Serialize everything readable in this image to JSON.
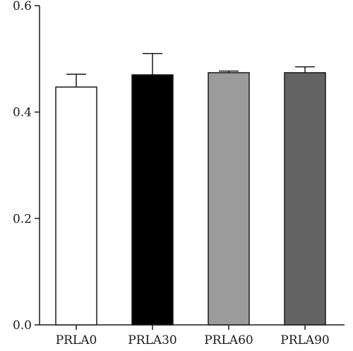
{
  "chart_data": {
    "type": "bar",
    "categories": [
      "PRLA0",
      "PRLA30",
      "PRLA60",
      "PRLA90"
    ],
    "values": [
      0.447,
      0.47,
      0.474,
      0.474
    ],
    "error_upper": [
      0.471,
      0.51,
      0.477,
      0.485
    ],
    "bar_colors": [
      "#ffffff",
      "#000000",
      "#9b9b9b",
      "#636363"
    ],
    "ylim": [
      0,
      0.6
    ],
    "yticks": [
      0.0,
      0.2,
      0.4,
      0.6
    ],
    "ytick_labels": [
      "0.0",
      "0.2",
      "0.4",
      "0.6"
    ],
    "grid": false,
    "title": "",
    "xlabel": "",
    "ylabel": ""
  }
}
